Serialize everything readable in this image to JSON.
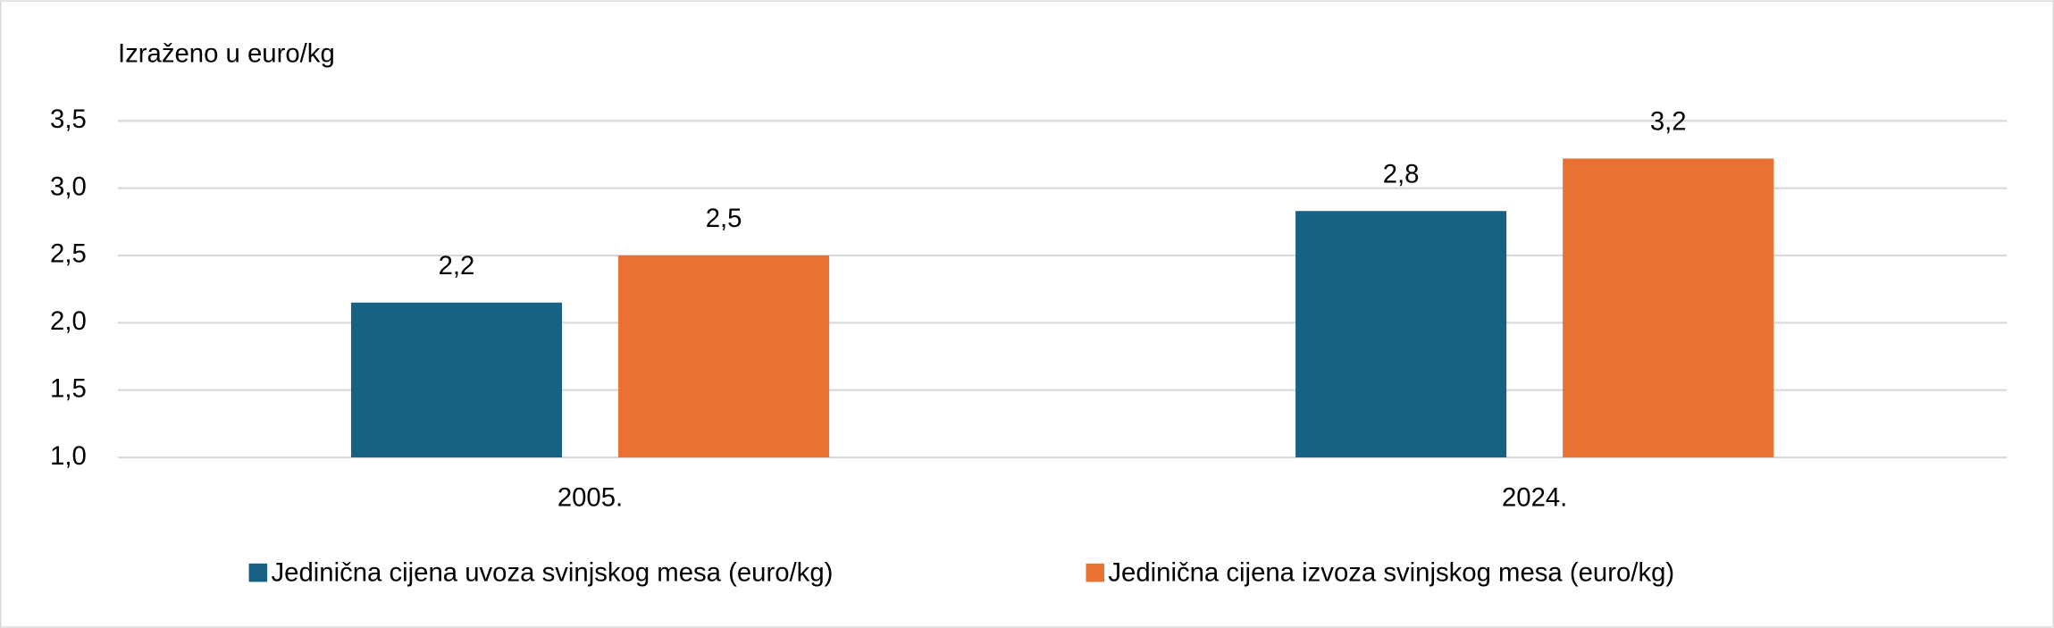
{
  "chart_data": {
    "type": "bar",
    "y_axis_label": "Izraženo u euro/kg",
    "categories": [
      "2005.",
      "2024."
    ],
    "series": [
      {
        "name": "Jedinična cijena uvoza svinjskog mesa (euro/kg)",
        "color": "#176185",
        "values": [
          2.15,
          2.83
        ],
        "value_labels": [
          "2,2",
          "2,8"
        ]
      },
      {
        "name": "Jedinična cijena izvoza svinjskog mesa (euro/kg)",
        "color": "#e97132",
        "values": [
          2.5,
          3.22
        ],
        "value_labels": [
          "2,5",
          "3,2"
        ]
      }
    ],
    "ylim": [
      1.0,
      3.5
    ],
    "yticks": [
      {
        "value": 1.0,
        "label": "1,0"
      },
      {
        "value": 1.5,
        "label": "1,5"
      },
      {
        "value": 2.0,
        "label": "2,0"
      },
      {
        "value": 2.5,
        "label": "2,5"
      },
      {
        "value": 3.0,
        "label": "3,0"
      },
      {
        "value": 3.5,
        "label": "3,5"
      }
    ],
    "grid": true,
    "legend": "bottom"
  }
}
